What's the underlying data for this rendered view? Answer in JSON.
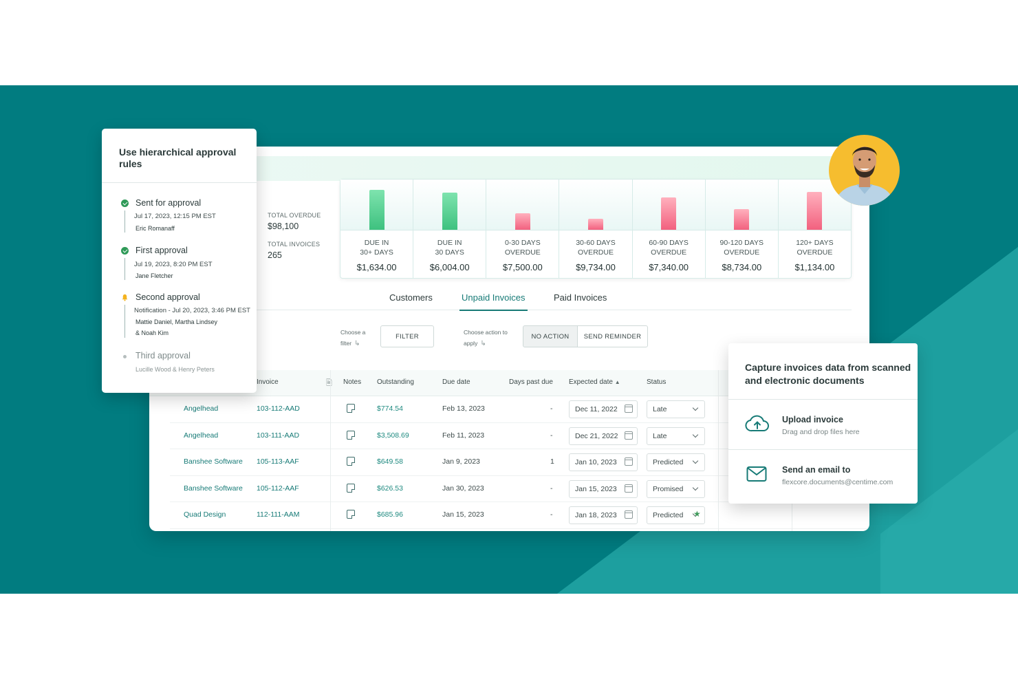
{
  "approval_card": {
    "title": "Use hierarchical approval rules",
    "steps": [
      {
        "name": "Sent for approval",
        "meta": "Jul 17, 2023, 12:15 PM EST",
        "who": "Eric Romanaff",
        "state": "done"
      },
      {
        "name": "First approval",
        "meta": "Jul 19, 2023, 8:20 PM EST",
        "who": "Jane Fletcher",
        "state": "done"
      },
      {
        "name": "Second approval",
        "meta": "Notification - Jul 20, 2023, 3:46 PM EST",
        "who": "Mattie Daniel, Martha Lindsey",
        "who2": "& Noah Kim",
        "state": "notified"
      },
      {
        "name": "Third approval",
        "meta": "",
        "who": "Lucille Wood & Henry Peters",
        "state": "pending"
      }
    ]
  },
  "summary": {
    "total_overdue_label": "TOTAL OVERDUE",
    "total_overdue": "$98,100",
    "total_invoices_label": "TOTAL INVOICES",
    "total_invoices": "265"
  },
  "aging_buckets": [
    {
      "line1": "DUE IN",
      "line2": "30+ DAYS",
      "amount": "$1,634.00",
      "bar_level": 0.78,
      "color": "green"
    },
    {
      "line1": "DUE IN",
      "line2": "30 DAYS",
      "amount": "$6,004.00",
      "bar_level": 0.73,
      "color": "green"
    },
    {
      "line1": "0-30 DAYS",
      "line2": "OVERDUE",
      "amount": "$7,500.00",
      "bar_level": 0.33,
      "color": "pink"
    },
    {
      "line1": "30-60 DAYS",
      "line2": "OVERDUE",
      "amount": "$9,734.00",
      "bar_level": 0.21,
      "color": "pink"
    },
    {
      "line1": "60-90 DAYS",
      "line2": "OVERDUE",
      "amount": "$7,340.00",
      "bar_level": 0.63,
      "color": "pink"
    },
    {
      "line1": "90-120 DAYS",
      "line2": "OVERDUE",
      "amount": "$8,734.00",
      "bar_level": 0.4,
      "color": "pink"
    },
    {
      "line1": "120+ DAYS",
      "line2": "OVERDUE",
      "amount": "$1,134.00",
      "bar_level": 0.74,
      "color": "pink"
    }
  ],
  "tabs": [
    "Customers",
    "Unpaid Invoices",
    "Paid Invoices"
  ],
  "active_tab": "Unpaid Invoices",
  "toolbar": {
    "filter_hint_1": "Choose a",
    "filter_hint_2": "filter",
    "filter_button": "FILTER",
    "action_hint_1": "Choose action to",
    "action_hint_2": "apply",
    "no_action_button": "NO ACTION",
    "send_reminder_button": "SEND REMINDER"
  },
  "table": {
    "headers": {
      "invoice": "Invoice",
      "notes": "Notes",
      "outstanding": "Outstanding",
      "due_date": "Due date",
      "days_past_due": "Days past due",
      "expected_date": "Expected date",
      "status": "Status"
    },
    "rows": [
      {
        "customer": "Angelhead",
        "invoice": "103-112-AAD",
        "outstanding": "$774.54",
        "due": "Feb 13, 2023",
        "days": "-",
        "expected": "Dec 11, 2022",
        "status": "Late"
      },
      {
        "customer": "Angelhead",
        "invoice": "103-111-AAD",
        "outstanding": "$3,508.69",
        "due": "Feb 11, 2023",
        "days": "-",
        "expected": "Dec 21, 2022",
        "status": "Late"
      },
      {
        "customer": "Banshee Software",
        "invoice": "105-113-AAF",
        "outstanding": "$649.58",
        "due": "Jan 9, 2023",
        "days": "1",
        "expected": "Jan 10, 2023",
        "status": "Predicted"
      },
      {
        "customer": "Banshee Software",
        "invoice": "105-112-AAF",
        "outstanding": "$626.53",
        "due": "Jan 30, 2023",
        "days": "-",
        "expected": "Jan 15, 2023",
        "status": "Promised"
      },
      {
        "customer": "Quad Design",
        "invoice": "112-111-AAM",
        "outstanding": "$685.96",
        "due": "Jan 15, 2023",
        "days": "-",
        "expected": "Jan 18, 2023",
        "status": "Predicted"
      }
    ]
  },
  "capture_card": {
    "title": "Capture invoices data from scanned and electronic documents",
    "upload_title": "Upload invoice",
    "upload_sub": "Drag and drop files here",
    "email_title": "Send an email to",
    "email_address": "flexcore.documents@centime.com"
  },
  "colors": {
    "background_teal": "#017c80",
    "accent": "#167a76",
    "avatar_ring": "#f6bd2f"
  }
}
